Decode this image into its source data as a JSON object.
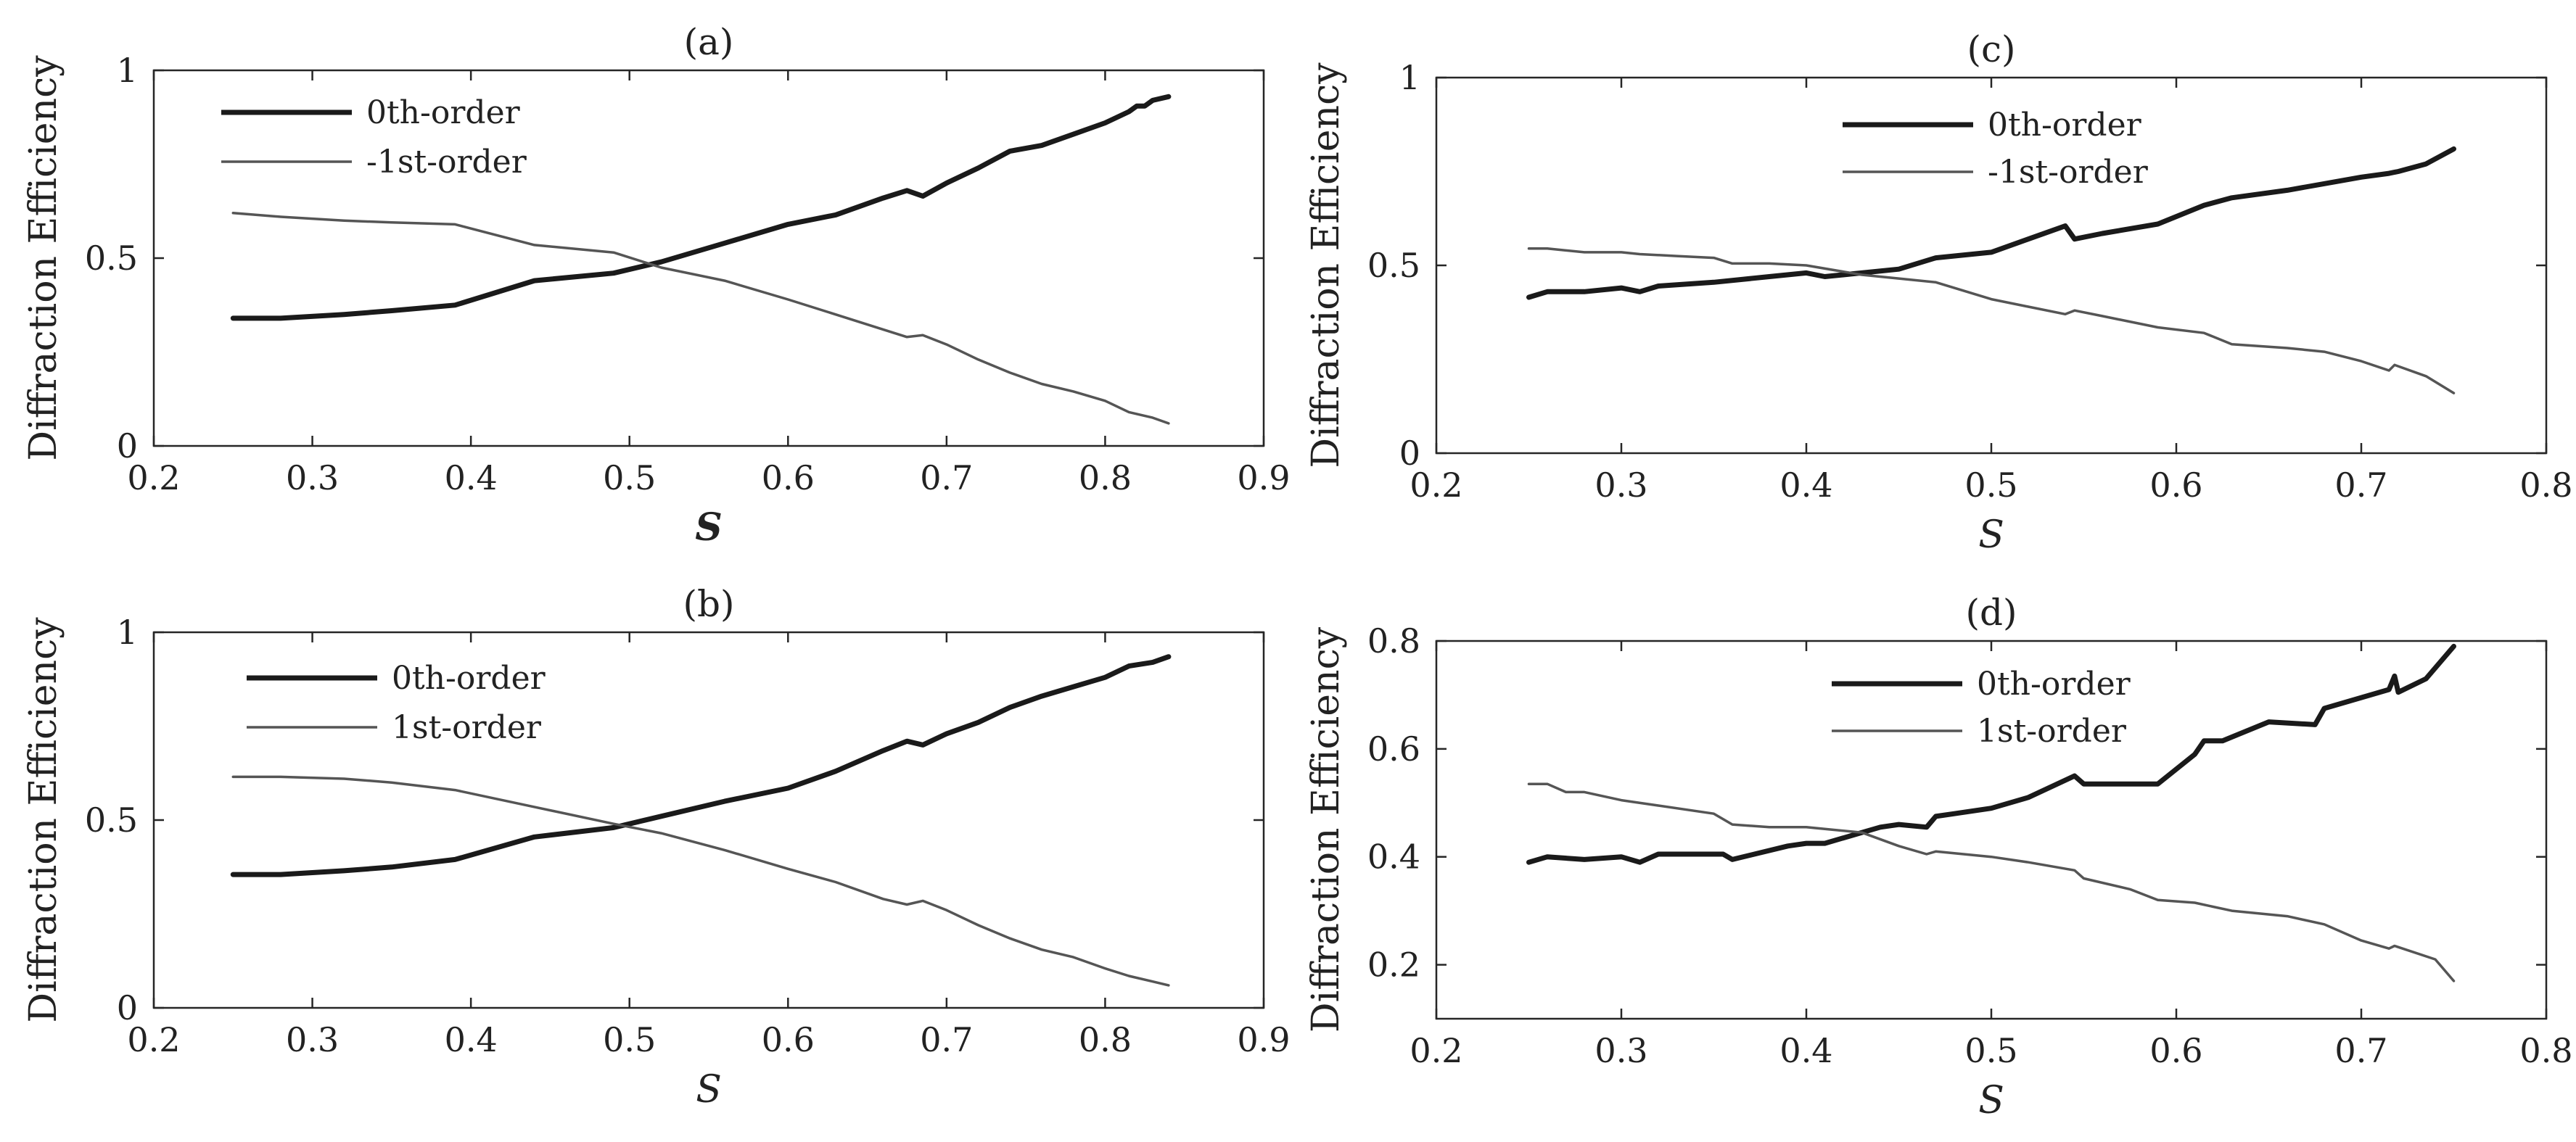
{
  "colors": {
    "order0": "#1a1a1a",
    "order1": "#555555",
    "axis": "#262626",
    "background": "#ffffff"
  },
  "chart_data": [
    {
      "panel": "a",
      "type": "line",
      "title": "(a)",
      "xlabel": "S",
      "xlabel_bold": true,
      "ylabel": "Diffraction Efficiency",
      "xlim": [
        0.2,
        0.9
      ],
      "ylim": [
        0,
        1
      ],
      "xticks": [
        0.2,
        0.3,
        0.4,
        0.5,
        0.6,
        0.7,
        0.8,
        0.9
      ],
      "xtick_labels": [
        "0.2",
        "0.3",
        "0.4",
        "0.5",
        "0.6",
        "0.7",
        "0.8",
        "0.9"
      ],
      "yticks": [
        0,
        0.5,
        1
      ],
      "ytick_labels": [
        "0",
        "0.5",
        "1"
      ],
      "legend_position": "top-left",
      "grid": false,
      "series": [
        {
          "name": "0th-order",
          "style": "thick-black",
          "x": [
            0.25,
            0.28,
            0.32,
            0.35,
            0.39,
            0.44,
            0.49,
            0.52,
            0.56,
            0.6,
            0.63,
            0.66,
            0.675,
            0.685,
            0.7,
            0.72,
            0.74,
            0.76,
            0.78,
            0.8,
            0.815,
            0.82,
            0.825,
            0.83,
            0.84
          ],
          "y": [
            0.34,
            0.34,
            0.35,
            0.36,
            0.375,
            0.44,
            0.46,
            0.49,
            0.54,
            0.59,
            0.615,
            0.66,
            0.68,
            0.665,
            0.7,
            0.74,
            0.785,
            0.8,
            0.83,
            0.86,
            0.89,
            0.905,
            0.905,
            0.92,
            0.93
          ]
        },
        {
          "name": "-1st-order",
          "style": "thin-gray",
          "x": [
            0.25,
            0.28,
            0.32,
            0.35,
            0.39,
            0.44,
            0.49,
            0.52,
            0.56,
            0.6,
            0.63,
            0.66,
            0.675,
            0.685,
            0.7,
            0.72,
            0.74,
            0.76,
            0.78,
            0.8,
            0.815,
            0.83,
            0.84
          ],
          "y": [
            0.62,
            0.61,
            0.6,
            0.595,
            0.59,
            0.535,
            0.515,
            0.475,
            0.44,
            0.39,
            0.35,
            0.31,
            0.29,
            0.295,
            0.27,
            0.23,
            0.195,
            0.165,
            0.145,
            0.12,
            0.09,
            0.075,
            0.06
          ]
        }
      ]
    },
    {
      "panel": "b",
      "type": "line",
      "title": "(b)",
      "xlabel": "S",
      "xlabel_bold": false,
      "ylabel": "Diffraction Efficiency",
      "xlim": [
        0.2,
        0.9
      ],
      "ylim": [
        0,
        1
      ],
      "xticks": [
        0.2,
        0.3,
        0.4,
        0.5,
        0.6,
        0.7,
        0.8,
        0.9
      ],
      "xtick_labels": [
        "0.2",
        "0.3",
        "0.4",
        "0.5",
        "0.6",
        "0.7",
        "0.8",
        "0.9"
      ],
      "yticks": [
        0,
        0.5,
        1
      ],
      "ytick_labels": [
        "0",
        "0.5",
        "1"
      ],
      "legend_position": "top-left",
      "grid": false,
      "series": [
        {
          "name": "0th-order",
          "style": "thick-black",
          "x": [
            0.25,
            0.28,
            0.32,
            0.35,
            0.39,
            0.44,
            0.49,
            0.52,
            0.56,
            0.6,
            0.63,
            0.66,
            0.675,
            0.685,
            0.7,
            0.72,
            0.74,
            0.76,
            0.78,
            0.8,
            0.815,
            0.83,
            0.84
          ],
          "y": [
            0.355,
            0.355,
            0.365,
            0.375,
            0.395,
            0.455,
            0.48,
            0.51,
            0.55,
            0.585,
            0.63,
            0.685,
            0.71,
            0.7,
            0.73,
            0.76,
            0.8,
            0.83,
            0.855,
            0.88,
            0.91,
            0.92,
            0.935
          ]
        },
        {
          "name": "1st-order",
          "style": "thin-gray",
          "x": [
            0.25,
            0.28,
            0.32,
            0.35,
            0.39,
            0.44,
            0.49,
            0.52,
            0.56,
            0.6,
            0.63,
            0.66,
            0.675,
            0.685,
            0.7,
            0.72,
            0.74,
            0.76,
            0.78,
            0.8,
            0.815,
            0.83,
            0.84
          ],
          "y": [
            0.615,
            0.615,
            0.61,
            0.6,
            0.58,
            0.535,
            0.49,
            0.465,
            0.42,
            0.37,
            0.335,
            0.29,
            0.275,
            0.285,
            0.26,
            0.22,
            0.185,
            0.155,
            0.135,
            0.105,
            0.085,
            0.07,
            0.06
          ]
        }
      ]
    },
    {
      "panel": "c",
      "type": "line",
      "title": "(c)",
      "xlabel": "S",
      "xlabel_bold": false,
      "ylabel": "Diffraction Efficiency",
      "xlim": [
        0.2,
        0.8
      ],
      "ylim": [
        0,
        1
      ],
      "xticks": [
        0.2,
        0.3,
        0.4,
        0.5,
        0.6,
        0.7,
        0.8
      ],
      "xtick_labels": [
        "0.2",
        "0.3",
        "0.4",
        "0.5",
        "0.6",
        "0.7",
        "0.8"
      ],
      "yticks": [
        0,
        0.5,
        1
      ],
      "ytick_labels": [
        "0",
        "0.5",
        "1"
      ],
      "legend_position": "top-center",
      "grid": false,
      "series": [
        {
          "name": "0th-order",
          "style": "thick-black",
          "x": [
            0.25,
            0.26,
            0.28,
            0.3,
            0.31,
            0.32,
            0.35,
            0.38,
            0.4,
            0.41,
            0.43,
            0.45,
            0.47,
            0.5,
            0.52,
            0.54,
            0.545,
            0.56,
            0.59,
            0.615,
            0.63,
            0.66,
            0.7,
            0.715,
            0.72,
            0.735,
            0.75
          ],
          "y": [
            0.415,
            0.43,
            0.43,
            0.44,
            0.43,
            0.445,
            0.455,
            0.47,
            0.48,
            0.47,
            0.48,
            0.49,
            0.52,
            0.535,
            0.57,
            0.605,
            0.57,
            0.585,
            0.61,
            0.66,
            0.68,
            0.7,
            0.735,
            0.745,
            0.75,
            0.77,
            0.81
          ]
        },
        {
          "name": "-1st-order",
          "style": "thin-gray",
          "x": [
            0.25,
            0.26,
            0.28,
            0.3,
            0.31,
            0.33,
            0.35,
            0.36,
            0.38,
            0.4,
            0.43,
            0.45,
            0.47,
            0.5,
            0.52,
            0.54,
            0.545,
            0.56,
            0.59,
            0.615,
            0.63,
            0.66,
            0.68,
            0.7,
            0.715,
            0.718,
            0.735,
            0.75
          ],
          "y": [
            0.545,
            0.545,
            0.535,
            0.535,
            0.53,
            0.525,
            0.52,
            0.505,
            0.505,
            0.5,
            0.475,
            0.465,
            0.455,
            0.41,
            0.39,
            0.37,
            0.38,
            0.365,
            0.335,
            0.32,
            0.29,
            0.28,
            0.27,
            0.245,
            0.22,
            0.235,
            0.205,
            0.16
          ]
        }
      ]
    },
    {
      "panel": "d",
      "type": "line",
      "title": "(d)",
      "xlabel": "S",
      "xlabel_bold": false,
      "ylabel": "Diffraction Efficiency",
      "xlim": [
        0.2,
        0.8
      ],
      "ylim": [
        0.1,
        0.8
      ],
      "xticks": [
        0.2,
        0.3,
        0.4,
        0.5,
        0.6,
        0.7,
        0.8
      ],
      "xtick_labels": [
        "0.2",
        "0.3",
        "0.4",
        "0.5",
        "0.6",
        "0.7",
        "0.8"
      ],
      "yticks": [
        0.2,
        0.4,
        0.6,
        0.8
      ],
      "ytick_labels": [
        "0.2",
        "0.4",
        "0.6",
        "0.8"
      ],
      "legend_position": "top-center",
      "grid": false,
      "series": [
        {
          "name": "0th-order",
          "style": "thick-black",
          "x": [
            0.25,
            0.26,
            0.28,
            0.3,
            0.31,
            0.32,
            0.34,
            0.355,
            0.36,
            0.39,
            0.4,
            0.41,
            0.44,
            0.45,
            0.465,
            0.47,
            0.48,
            0.5,
            0.52,
            0.545,
            0.55,
            0.56,
            0.59,
            0.61,
            0.615,
            0.625,
            0.65,
            0.675,
            0.68,
            0.715,
            0.718,
            0.72,
            0.735,
            0.75
          ],
          "y": [
            0.39,
            0.4,
            0.395,
            0.4,
            0.39,
            0.405,
            0.405,
            0.405,
            0.395,
            0.42,
            0.425,
            0.425,
            0.455,
            0.46,
            0.455,
            0.475,
            0.48,
            0.49,
            0.51,
            0.55,
            0.535,
            0.535,
            0.535,
            0.59,
            0.615,
            0.615,
            0.65,
            0.645,
            0.675,
            0.71,
            0.735,
            0.705,
            0.73,
            0.79
          ]
        },
        {
          "name": "1st-order",
          "style": "thin-gray",
          "x": [
            0.25,
            0.26,
            0.27,
            0.28,
            0.3,
            0.32,
            0.35,
            0.36,
            0.38,
            0.4,
            0.43,
            0.45,
            0.465,
            0.47,
            0.5,
            0.52,
            0.545,
            0.55,
            0.575,
            0.59,
            0.61,
            0.63,
            0.66,
            0.68,
            0.7,
            0.715,
            0.718,
            0.74,
            0.75
          ],
          "y": [
            0.535,
            0.535,
            0.52,
            0.52,
            0.505,
            0.495,
            0.48,
            0.46,
            0.455,
            0.455,
            0.445,
            0.42,
            0.405,
            0.41,
            0.4,
            0.39,
            0.375,
            0.36,
            0.34,
            0.32,
            0.315,
            0.3,
            0.29,
            0.275,
            0.245,
            0.23,
            0.235,
            0.21,
            0.17
          ]
        }
      ]
    }
  ]
}
